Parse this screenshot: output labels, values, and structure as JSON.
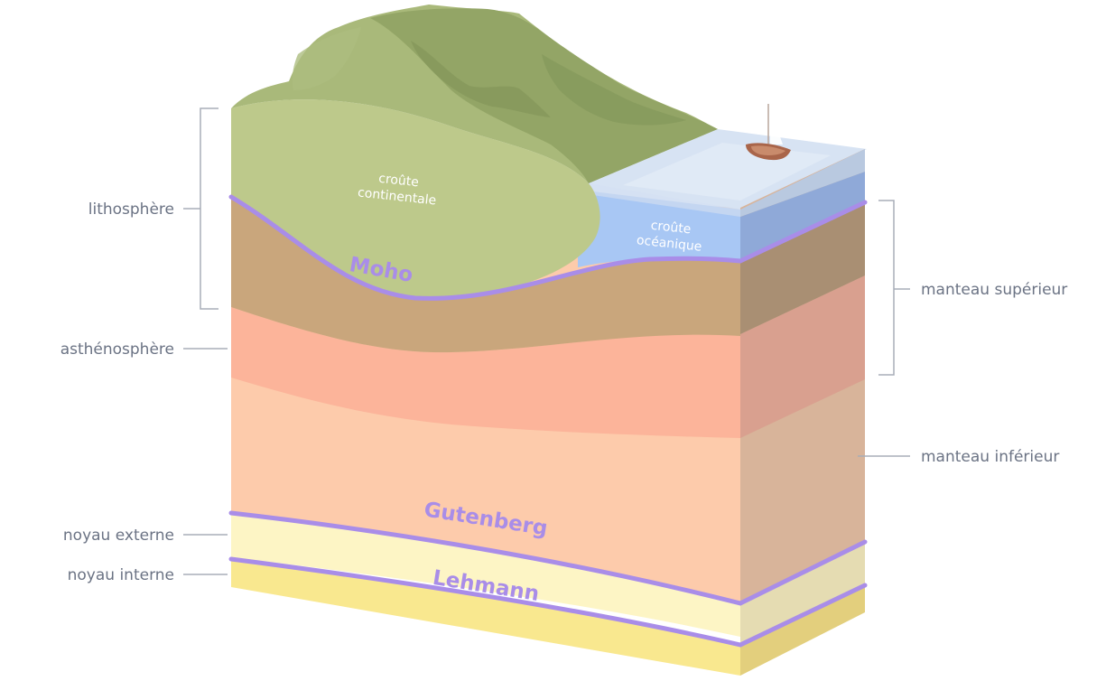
{
  "diagram": {
    "labels": {
      "lithosphere": "lithosphère",
      "asthenosphere": "asthénosphère",
      "outer_core": "noyau externe",
      "inner_core": "noyau interne",
      "upper_mantle": "manteau supérieur",
      "lower_mantle": "manteau inférieur"
    },
    "crust": {
      "continental_line1": "croûte",
      "continental_line2": "continentale",
      "oceanic_line1": "croûte",
      "oceanic_line2": "océanique"
    },
    "boundaries": {
      "moho": "Moho",
      "gutenberg": "Gutenberg",
      "lehmann": "Lehmann"
    },
    "colors": {
      "continental_crust": "#bdc98b",
      "mountains": "#9aab6c",
      "ocean_top": "#d7e3f3",
      "oceanic_crust": "#a8c7f4",
      "lithospheric_mantle": "#c9a67c",
      "asthenosphere": "#fcb49a",
      "lower_mantle": "#fdcbab",
      "outer_core": "#fdf5c5",
      "inner_core": "#f9e88f",
      "discontinuity": "#a98de8",
      "label_text": "#6b7384",
      "leader_line": "#a8adb8"
    }
  }
}
